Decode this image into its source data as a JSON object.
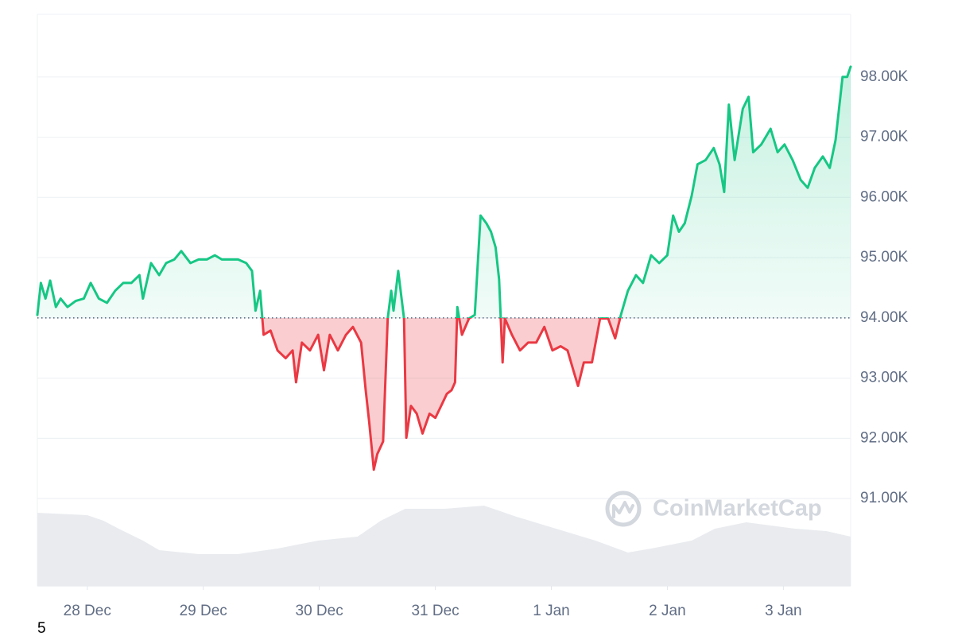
{
  "chart_data": {
    "type": "line",
    "baseline": 94000,
    "up_color": "#16c784",
    "down_color": "#ea3943",
    "volume_color": "#e9ebef",
    "grid": true,
    "watermark": "CoinMarketCap",
    "footnote": "5",
    "ylim": [
      89550,
      99040
    ],
    "yticks": [
      {
        "value": 91000,
        "label": "91.00K"
      },
      {
        "value": 92000,
        "label": "92.00K"
      },
      {
        "value": 93000,
        "label": "93.00K"
      },
      {
        "value": 94000,
        "label": "94.00K"
      },
      {
        "value": 95000,
        "label": "95.00K"
      },
      {
        "value": 96000,
        "label": "96.00K"
      },
      {
        "value": 97000,
        "label": "97.00K"
      },
      {
        "value": 98000,
        "label": "98.00K"
      }
    ],
    "xlim": [
      -0.43,
      6.58
    ],
    "xticks": [
      {
        "value": 0,
        "label": "28 Dec"
      },
      {
        "value": 1,
        "label": "29 Dec"
      },
      {
        "value": 2,
        "label": "30 Dec"
      },
      {
        "value": 3,
        "label": "31 Dec"
      },
      {
        "value": 4,
        "label": "1 Jan"
      },
      {
        "value": 5,
        "label": "2 Jan"
      },
      {
        "value": 6,
        "label": "3 Jan"
      }
    ],
    "x": [
      -0.43,
      -0.4,
      -0.36,
      -0.32,
      -0.27,
      -0.23,
      -0.17,
      -0.1,
      -0.03,
      0.03,
      0.1,
      0.17,
      0.24,
      0.31,
      0.38,
      0.45,
      0.48,
      0.55,
      0.62,
      0.68,
      0.75,
      0.81,
      0.89,
      0.96,
      1.03,
      1.1,
      1.16,
      1.23,
      1.3,
      1.37,
      1.42,
      1.45,
      1.49,
      1.52,
      1.58,
      1.64,
      1.71,
      1.77,
      1.8,
      1.85,
      1.92,
      1.99,
      2.04,
      2.09,
      2.16,
      2.23,
      2.29,
      2.36,
      2.4,
      2.43,
      2.47,
      2.5,
      2.55,
      2.59,
      2.62,
      2.64,
      2.68,
      2.73,
      2.75,
      2.79,
      2.84,
      2.89,
      2.95,
      3.0,
      3.05,
      3.1,
      3.14,
      3.17,
      3.19,
      3.23,
      3.29,
      3.34,
      3.39,
      3.44,
      3.48,
      3.52,
      3.55,
      3.58,
      3.6,
      3.66,
      3.73,
      3.8,
      3.87,
      3.94,
      4.01,
      4.08,
      4.14,
      4.19,
      4.23,
      4.28,
      4.35,
      4.42,
      4.49,
      4.55,
      4.6,
      4.66,
      4.73,
      4.79,
      4.86,
      4.93,
      5.0,
      5.05,
      5.1,
      5.15,
      5.21,
      5.26,
      5.33,
      5.4,
      5.45,
      5.49,
      5.53,
      5.58,
      5.65,
      5.7,
      5.74,
      5.81,
      5.89,
      5.95,
      6.01,
      6.08,
      6.15,
      6.21,
      6.27,
      6.34,
      6.4,
      6.45,
      6.51,
      6.55,
      6.58
    ],
    "values": [
      94050,
      94580,
      94320,
      94620,
      94180,
      94320,
      94180,
      94280,
      94320,
      94580,
      94320,
      94250,
      94450,
      94580,
      94580,
      94710,
      94320,
      94910,
      94710,
      94910,
      94970,
      95110,
      94910,
      94970,
      94970,
      95040,
      94970,
      94970,
      94970,
      94910,
      94780,
      94120,
      94450,
      93720,
      93790,
      93460,
      93330,
      93460,
      92930,
      93590,
      93460,
      93720,
      93130,
      93720,
      93460,
      93720,
      93850,
      93590,
      92800,
      92270,
      91480,
      91740,
      91950,
      93990,
      94450,
      94120,
      94780,
      93990,
      92010,
      92540,
      92410,
      92080,
      92410,
      92340,
      92540,
      92740,
      92800,
      92930,
      94180,
      93720,
      93990,
      94050,
      95700,
      95570,
      95430,
      95170,
      94640,
      93260,
      93990,
      93720,
      93460,
      93590,
      93590,
      93850,
      93460,
      93530,
      93460,
      93130,
      92870,
      93260,
      93260,
      93990,
      93990,
      93660,
      94050,
      94450,
      94710,
      94580,
      95040,
      94910,
      95040,
      95700,
      95430,
      95570,
      96030,
      96550,
      96620,
      96820,
      96550,
      96090,
      97540,
      96620,
      97470,
      97670,
      96750,
      96880,
      97140,
      96750,
      96880,
      96620,
      96290,
      96160,
      96490,
      96680,
      96490,
      96950,
      98000,
      98000,
      98170
    ],
    "volume": {
      "vlim": [
        0,
        110
      ],
      "x": [
        -0.43,
        0,
        0.14,
        0.27,
        0.48,
        0.62,
        0.96,
        1.3,
        1.64,
        1.99,
        2.33,
        2.53,
        2.74,
        3.08,
        3.42,
        3.7,
        4.04,
        4.38,
        4.66,
        4.86,
        5.21,
        5.41,
        5.68,
        6.1,
        6.37,
        6.58
      ],
      "values": [
        92,
        89,
        82,
        72,
        57,
        45,
        40,
        40,
        47,
        57,
        62,
        82,
        97,
        97,
        101,
        87,
        72,
        57,
        42,
        47,
        57,
        72,
        80,
        72,
        69,
        62
      ]
    }
  }
}
